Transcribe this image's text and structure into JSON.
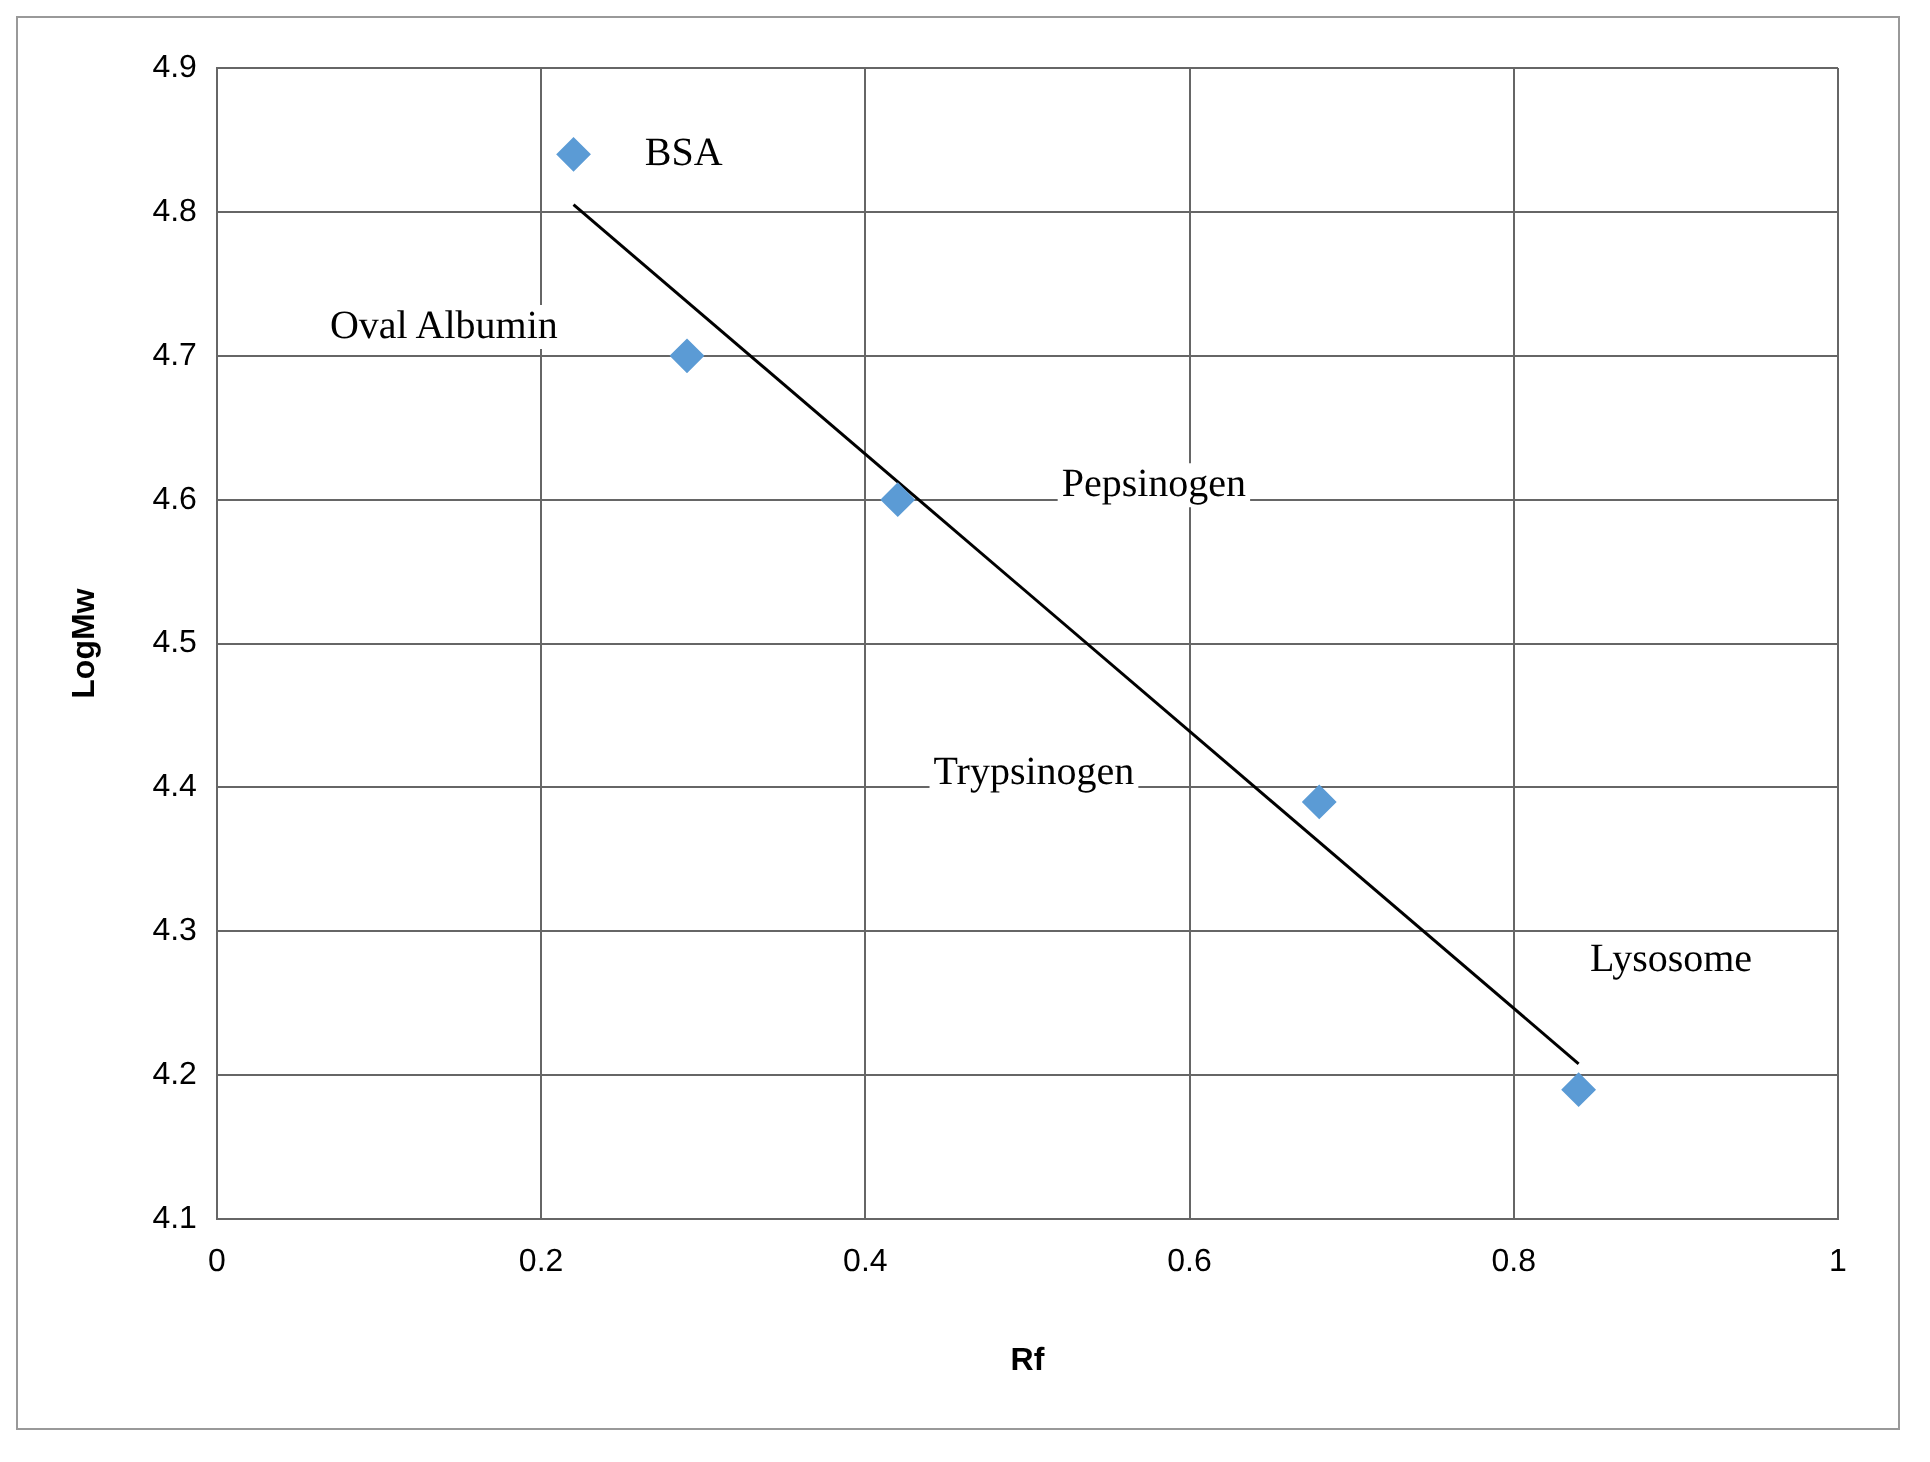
{
  "chart_data": {
    "type": "scatter",
    "xlabel": "Rf",
    "ylabel": "LogMw",
    "xlim": [
      0,
      1
    ],
    "xticks": [
      0,
      0.2,
      0.4,
      0.6,
      0.8,
      1
    ],
    "ylim": [
      4.1,
      4.9
    ],
    "yticks": [
      4.1,
      4.2,
      4.3,
      4.4,
      4.5,
      4.6,
      4.7,
      4.8,
      4.9
    ],
    "grid": true,
    "legend": false,
    "marker": "diamond",
    "series": [
      {
        "type": "scatter",
        "color": "#5b9bd5",
        "x": [
          0.22,
          0.29,
          0.42,
          0.68,
          0.84
        ],
        "values": [
          4.84,
          4.7,
          4.6,
          4.39,
          4.19
        ]
      },
      {
        "type": "line",
        "color": "#000000",
        "x": [
          0.22,
          0.84
        ],
        "values": [
          4.805,
          4.208
        ],
        "marker": "none"
      }
    ],
    "annotations": [
      "BSA",
      "Oval Albumin",
      "Pepsinogen",
      "Trypsinogen",
      "Lysosome"
    ]
  }
}
